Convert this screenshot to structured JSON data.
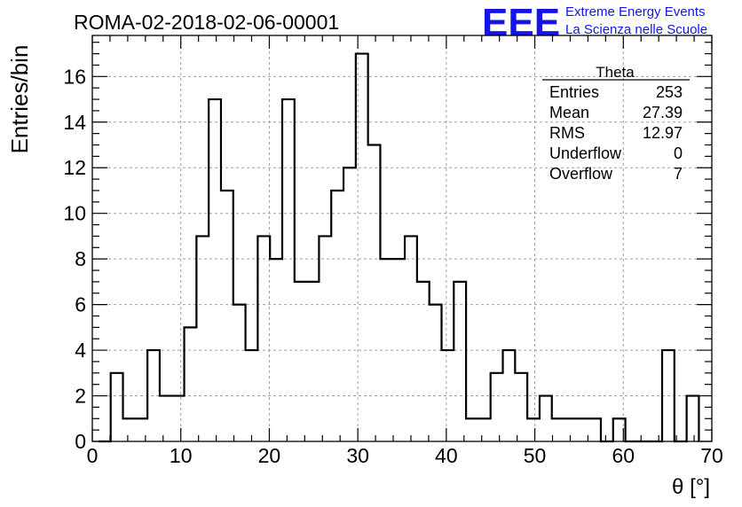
{
  "header": {
    "title": "ROMA-02-2018-02-06-00001",
    "logo_text": "EEE",
    "logo_line1": "Extreme Energy Events",
    "logo_line2": "La Scienza nelle Scuole"
  },
  "colors": {
    "logo": "#1414e6",
    "grid": "#9a9a9a",
    "line": "#000000"
  },
  "stats": {
    "title": "Theta",
    "rows": [
      {
        "label": "Entries",
        "value": "253"
      },
      {
        "label": "Mean",
        "value": "27.39"
      },
      {
        "label": "RMS",
        "value": "12.97"
      },
      {
        "label": "Underflow",
        "value": "0"
      },
      {
        "label": "Overflow",
        "value": "7"
      }
    ]
  },
  "chart_data": {
    "type": "histogram",
    "title": "ROMA-02-2018-02-06-00001",
    "xlabel": "θ [°]",
    "ylabel": "Entries/bin",
    "xlim": [
      0,
      70
    ],
    "ylim": [
      0,
      17.8
    ],
    "grid": true,
    "bin_width": 1.3846,
    "bin_start": 0.6923,
    "values": [
      0,
      3,
      1,
      1,
      4,
      2,
      2,
      5,
      9,
      15,
      11,
      6,
      4,
      9,
      8,
      15,
      7,
      7,
      9,
      11,
      12,
      17,
      13,
      8,
      8,
      9,
      7,
      6,
      4,
      7,
      1,
      1,
      3,
      4,
      3,
      1,
      2,
      1,
      1,
      1,
      1,
      0,
      1,
      0,
      0,
      0,
      4,
      0,
      2
    ],
    "xticks": [
      0,
      10,
      20,
      30,
      40,
      50,
      60,
      70
    ],
    "yticks": [
      0,
      2,
      4,
      6,
      8,
      10,
      12,
      14,
      16
    ]
  }
}
